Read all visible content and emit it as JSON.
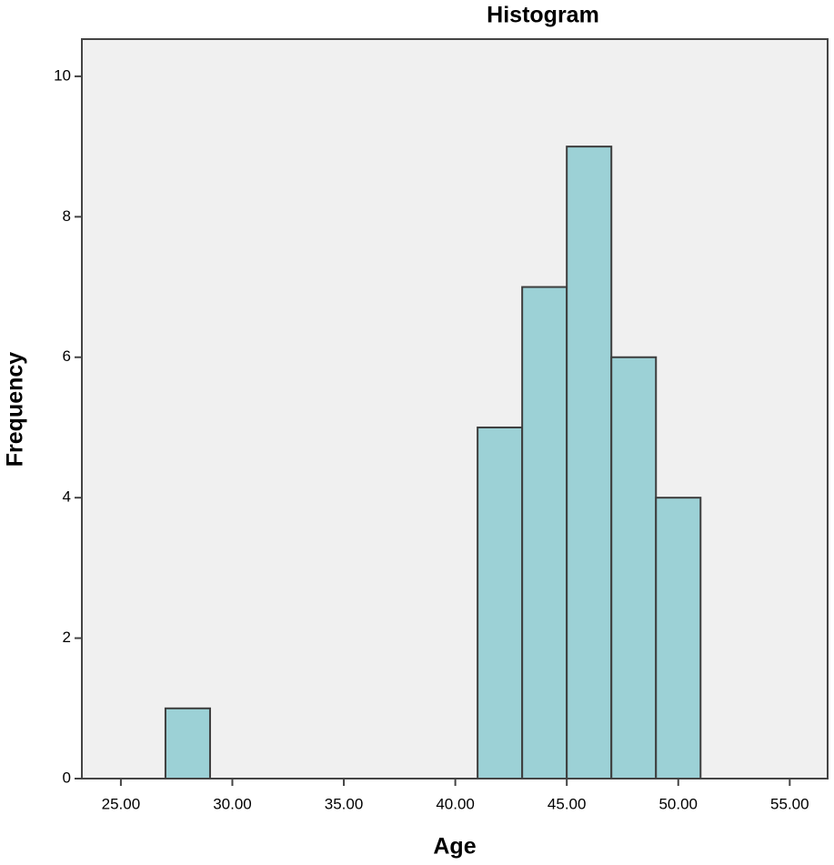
{
  "chart_data": {
    "type": "histogram",
    "title": "Histogram",
    "x_label": "Age",
    "y_label": "Frequency",
    "bins": [
      27,
      29,
      31,
      33,
      35,
      37,
      39,
      41,
      43,
      45,
      47,
      49,
      51
    ],
    "values": [
      1,
      0,
      0,
      0,
      0,
      0,
      0,
      5,
      7,
      9,
      6,
      4
    ],
    "color": "#9cd1d6",
    "edge_color": "#3d3d3d",
    "background": "#f0f0f0",
    "xlim": [
      23.25,
      56.7
    ],
    "ylim": [
      0,
      10.53
    ],
    "xticks": [
      {
        "value": 25,
        "label": "25.00"
      },
      {
        "value": 30,
        "label": "30.00"
      },
      {
        "value": 35,
        "label": "35.00"
      },
      {
        "value": 40,
        "label": "40.00"
      },
      {
        "value": 45,
        "label": "45.00"
      },
      {
        "value": 50,
        "label": "50.00"
      },
      {
        "value": 55,
        "label": "55.00"
      }
    ],
    "yticks": [
      0,
      2,
      4,
      6,
      8,
      10
    ],
    "grid": false
  }
}
